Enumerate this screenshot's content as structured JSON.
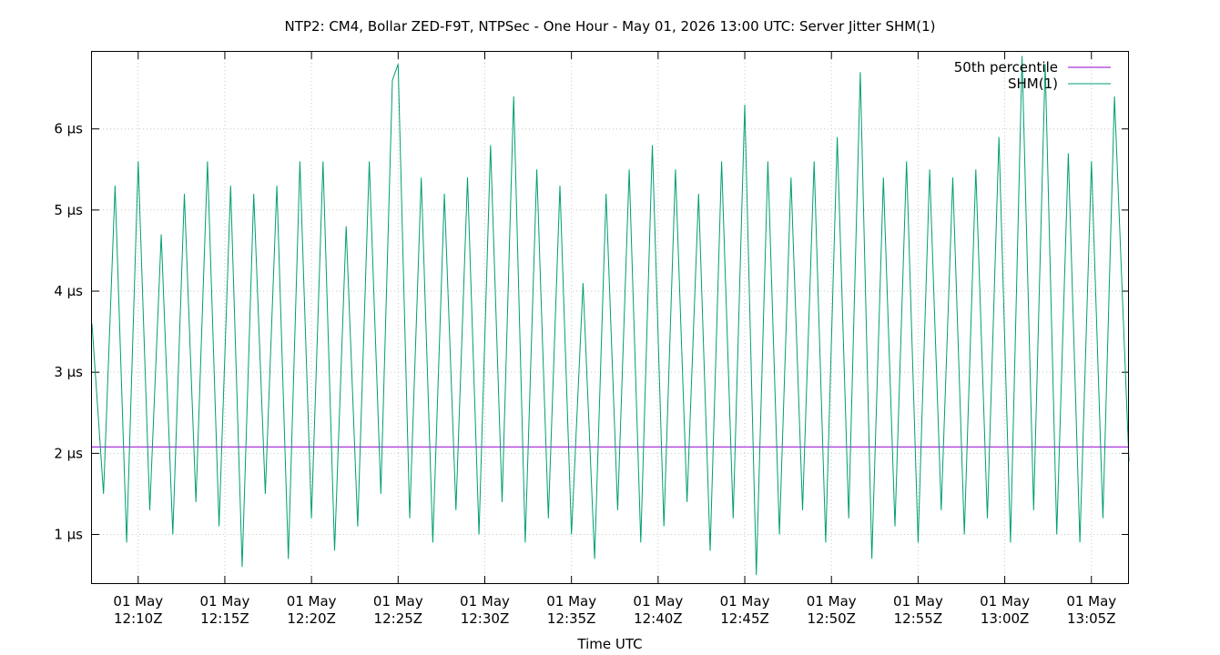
{
  "chart_data": {
    "type": "line",
    "title": "NTP2: CM4, Bollar ZED-F9T, NTPSec - One Hour - May 01, 2026 13:00 UTC: Server Jitter SHM(1)",
    "xlabel": "Time UTC",
    "ylabel": "",
    "x_range": [
      "2026-05-01T12:07:20Z",
      "2026-05-01T13:07:10Z"
    ],
    "ylim": [
      0.4,
      6.95
    ],
    "y_unit": "µs",
    "yticks": [
      {
        "value": 1,
        "label": "1 µs"
      },
      {
        "value": 2,
        "label": "2 µs"
      },
      {
        "value": 3,
        "label": "3 µs"
      },
      {
        "value": 4,
        "label": "4 µs"
      },
      {
        "value": 5,
        "label": "5 µs"
      },
      {
        "value": 6,
        "label": "6 µs"
      }
    ],
    "xticks": [
      {
        "time": "2026-05-01T12:10:00Z",
        "line1": "01 May",
        "line2": "12:10Z"
      },
      {
        "time": "2026-05-01T12:15:00Z",
        "line1": "01 May",
        "line2": "12:15Z"
      },
      {
        "time": "2026-05-01T12:20:00Z",
        "line1": "01 May",
        "line2": "12:20Z"
      },
      {
        "time": "2026-05-01T12:25:00Z",
        "line1": "01 May",
        "line2": "12:25Z"
      },
      {
        "time": "2026-05-01T12:30:00Z",
        "line1": "01 May",
        "line2": "12:30Z"
      },
      {
        "time": "2026-05-01T12:35:00Z",
        "line1": "01 May",
        "line2": "12:35Z"
      },
      {
        "time": "2026-05-01T12:40:00Z",
        "line1": "01 May",
        "line2": "12:40Z"
      },
      {
        "time": "2026-05-01T12:45:00Z",
        "line1": "01 May",
        "line2": "12:45Z"
      },
      {
        "time": "2026-05-01T12:50:00Z",
        "line1": "01 May",
        "line2": "12:50Z"
      },
      {
        "time": "2026-05-01T12:55:00Z",
        "line1": "01 May",
        "line2": "12:55Z"
      },
      {
        "time": "2026-05-01T13:00:00Z",
        "line1": "01 May",
        "line2": "13:00Z"
      },
      {
        "time": "2026-05-01T13:05:00Z",
        "line1": "01 May",
        "line2": "13:05Z"
      }
    ],
    "grid": true,
    "legend_position": "top-right",
    "series": [
      {
        "name": "50th percentile",
        "color": "#9400d3",
        "kind": "constant",
        "x": [
          "2026-05-01T12:07:20Z",
          "2026-05-01T13:07:10Z"
        ],
        "y": [
          2.08,
          2.08
        ]
      },
      {
        "name": "SHM(1)",
        "color": "#009e73",
        "kind": "line",
        "x": [
          "2026-05-01T12:07:20Z",
          "2026-05-01T12:08:00Z",
          "2026-05-01T12:08:40Z",
          "2026-05-01T12:09:20Z",
          "2026-05-01T12:10:00Z",
          "2026-05-01T12:10:40Z",
          "2026-05-01T12:11:20Z",
          "2026-05-01T12:12:00Z",
          "2026-05-01T12:12:40Z",
          "2026-05-01T12:13:20Z",
          "2026-05-01T12:14:00Z",
          "2026-05-01T12:14:40Z",
          "2026-05-01T12:15:20Z",
          "2026-05-01T12:16:00Z",
          "2026-05-01T12:16:40Z",
          "2026-05-01T12:17:20Z",
          "2026-05-01T12:18:00Z",
          "2026-05-01T12:18:40Z",
          "2026-05-01T12:19:20Z",
          "2026-05-01T12:20:00Z",
          "2026-05-01T12:20:40Z",
          "2026-05-01T12:21:20Z",
          "2026-05-01T12:22:00Z",
          "2026-05-01T12:22:40Z",
          "2026-05-01T12:23:20Z",
          "2026-05-01T12:24:00Z",
          "2026-05-01T12:24:40Z",
          "2026-05-01T12:25:00Z",
          "2026-05-01T12:25:40Z",
          "2026-05-01T12:26:20Z",
          "2026-05-01T12:27:00Z",
          "2026-05-01T12:27:40Z",
          "2026-05-01T12:28:20Z",
          "2026-05-01T12:29:00Z",
          "2026-05-01T12:29:40Z",
          "2026-05-01T12:30:20Z",
          "2026-05-01T12:31:00Z",
          "2026-05-01T12:31:40Z",
          "2026-05-01T12:32:20Z",
          "2026-05-01T12:33:00Z",
          "2026-05-01T12:33:40Z",
          "2026-05-01T12:34:20Z",
          "2026-05-01T12:35:00Z",
          "2026-05-01T12:35:40Z",
          "2026-05-01T12:36:20Z",
          "2026-05-01T12:37:00Z",
          "2026-05-01T12:37:40Z",
          "2026-05-01T12:38:20Z",
          "2026-05-01T12:39:00Z",
          "2026-05-01T12:39:40Z",
          "2026-05-01T12:40:20Z",
          "2026-05-01T12:41:00Z",
          "2026-05-01T12:41:40Z",
          "2026-05-01T12:42:20Z",
          "2026-05-01T12:43:00Z",
          "2026-05-01T12:43:40Z",
          "2026-05-01T12:44:20Z",
          "2026-05-01T12:45:00Z",
          "2026-05-01T12:45:40Z",
          "2026-05-01T12:46:20Z",
          "2026-05-01T12:47:00Z",
          "2026-05-01T12:47:40Z",
          "2026-05-01T12:48:20Z",
          "2026-05-01T12:49:00Z",
          "2026-05-01T12:49:40Z",
          "2026-05-01T12:50:20Z",
          "2026-05-01T12:51:00Z",
          "2026-05-01T12:51:40Z",
          "2026-05-01T12:52:20Z",
          "2026-05-01T12:53:00Z",
          "2026-05-01T12:53:40Z",
          "2026-05-01T12:54:20Z",
          "2026-05-01T12:55:00Z",
          "2026-05-01T12:55:40Z",
          "2026-05-01T12:56:20Z",
          "2026-05-01T12:57:00Z",
          "2026-05-01T12:57:40Z",
          "2026-05-01T12:58:20Z",
          "2026-05-01T12:59:00Z",
          "2026-05-01T12:59:40Z",
          "2026-05-01T13:00:20Z",
          "2026-05-01T13:01:00Z",
          "2026-05-01T13:01:40Z",
          "2026-05-01T13:02:20Z",
          "2026-05-01T13:03:00Z",
          "2026-05-01T13:03:40Z",
          "2026-05-01T13:04:20Z",
          "2026-05-01T13:05:00Z",
          "2026-05-01T13:05:40Z",
          "2026-05-01T13:06:20Z",
          "2026-05-01T13:07:10Z"
        ],
        "y": [
          3.6,
          1.5,
          5.3,
          0.9,
          5.6,
          1.3,
          4.7,
          1.0,
          5.2,
          1.4,
          5.6,
          1.1,
          5.3,
          0.6,
          5.2,
          1.5,
          5.3,
          0.7,
          5.6,
          1.2,
          5.6,
          0.8,
          4.8,
          1.1,
          5.6,
          1.5,
          6.6,
          6.8,
          1.2,
          5.4,
          0.9,
          5.2,
          1.3,
          5.4,
          1.0,
          5.8,
          1.4,
          6.4,
          0.9,
          5.5,
          1.2,
          5.3,
          1.0,
          4.1,
          0.7,
          5.2,
          1.3,
          5.5,
          0.9,
          5.8,
          1.1,
          5.5,
          1.4,
          5.2,
          0.8,
          5.6,
          1.2,
          6.3,
          0.5,
          5.6,
          1.0,
          5.4,
          1.3,
          5.6,
          0.9,
          5.9,
          1.2,
          6.7,
          0.7,
          5.4,
          1.1,
          5.6,
          0.9,
          5.5,
          1.3,
          5.4,
          1.0,
          5.5,
          1.2,
          5.9,
          0.9,
          6.9,
          1.3,
          6.8,
          1.0,
          5.7,
          0.9,
          5.6,
          1.2,
          6.4,
          1.9
        ]
      }
    ]
  }
}
